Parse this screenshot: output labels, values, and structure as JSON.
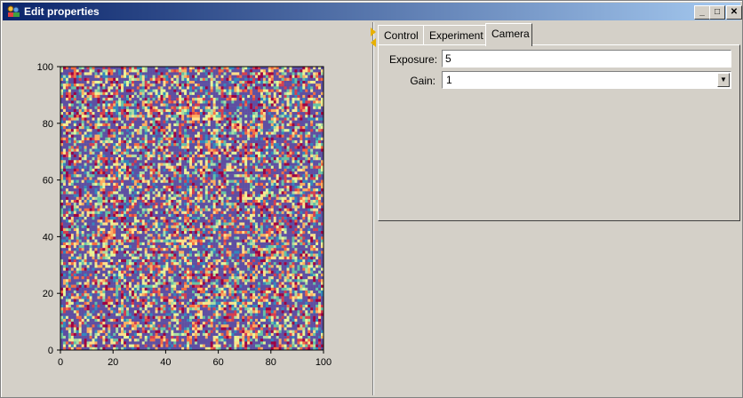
{
  "window": {
    "title": "Edit properties",
    "title_gradient": [
      "#0a246a",
      "#a6caf0"
    ],
    "buttons": {
      "minimize": "_",
      "maximize": "□",
      "close": "✕"
    }
  },
  "tabs": [
    {
      "label": "Control",
      "active": false
    },
    {
      "label": "Experiment",
      "active": false
    },
    {
      "label": "Camera",
      "active": true
    }
  ],
  "camera": {
    "exposure_label": "Exposure:",
    "exposure_value": "5",
    "gain_label": "Gain:",
    "gain_value": "1"
  },
  "chart_data": {
    "type": "heatmap",
    "title": "",
    "xlabel": "",
    "ylabel": "",
    "xlim": [
      0,
      100
    ],
    "ylim": [
      0,
      100
    ],
    "xticks": [
      0,
      20,
      40,
      60,
      80,
      100
    ],
    "yticks": [
      0,
      20,
      40,
      60,
      80,
      100
    ],
    "grid_size": [
      100,
      100
    ],
    "colormap": [
      "#5e4fa2",
      "#3288bd",
      "#66c2a5",
      "#abdda4",
      "#e6f598",
      "#fee08b",
      "#fdae61",
      "#f46d43",
      "#d53e4f",
      "#9e0142"
    ],
    "dominant_color": "#5e4fa2"
  }
}
